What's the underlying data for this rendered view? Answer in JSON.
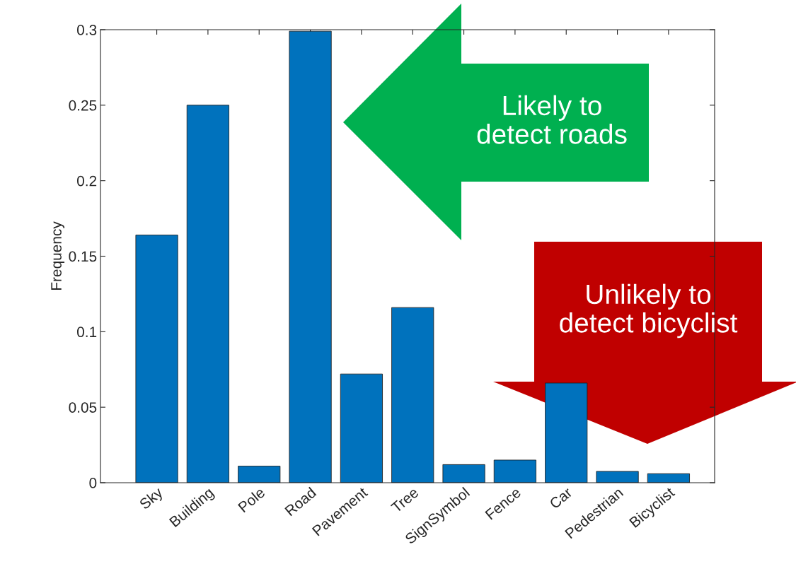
{
  "chart_data": {
    "type": "bar",
    "ylabel": "Frequency",
    "categories": [
      "Sky",
      "Building",
      "Pole",
      "Road",
      "Pavement",
      "Tree",
      "SignSymbol",
      "Fence",
      "Car",
      "Pedestrian",
      "Bicyclist"
    ],
    "values": [
      0.164,
      0.25,
      0.011,
      0.299,
      0.072,
      0.116,
      0.012,
      0.015,
      0.066,
      0.0075,
      0.006
    ],
    "color": "#0072bd",
    "ylim": [
      0,
      0.3
    ],
    "yticks": [
      0,
      0.05,
      0.1,
      0.15,
      0.2,
      0.25,
      0.3
    ],
    "grid": false,
    "annotations": [
      "Likely to\ndetect roads",
      "Unlikely to\ndetect bicyclist"
    ]
  }
}
